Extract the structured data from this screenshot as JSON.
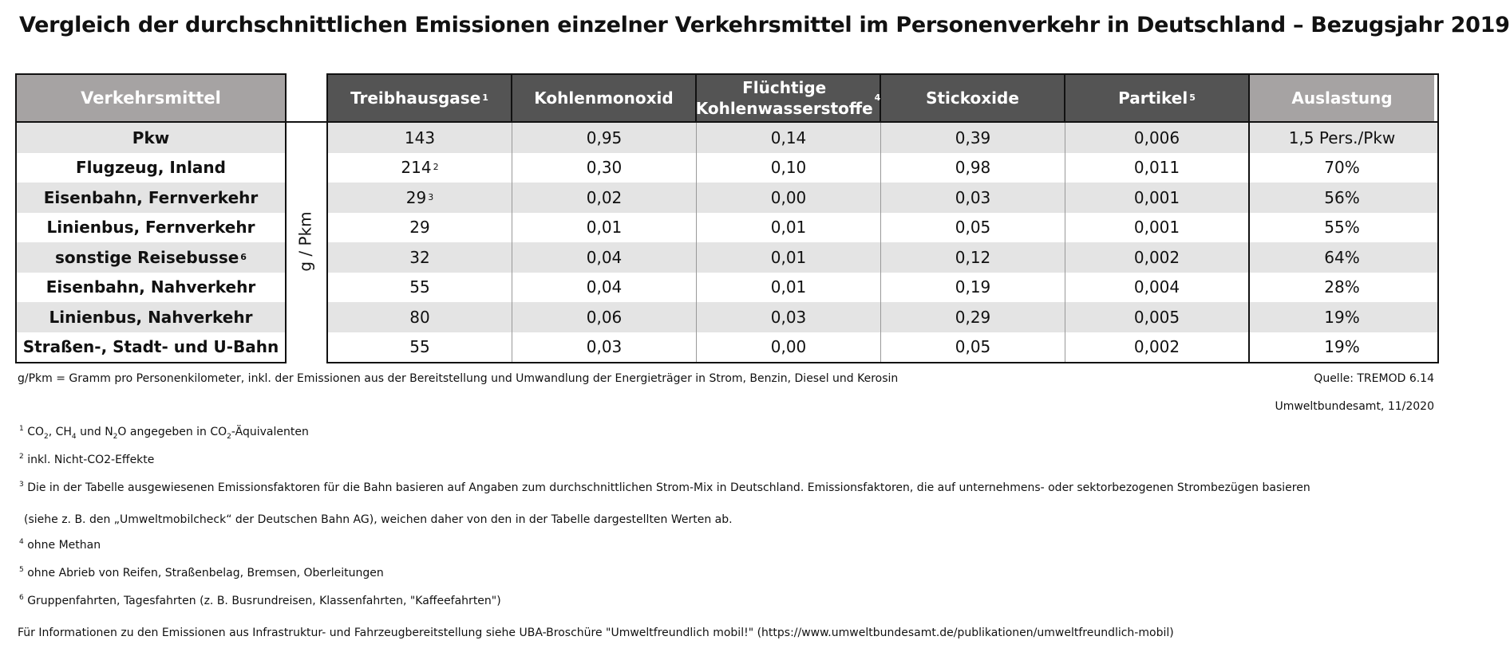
{
  "title": "Vergleich der durchschnittlichen Emissionen einzelner Verkehrsmittel im Personenverkehr in Deutschland – Bezugsjahr 2019",
  "chart_data": {
    "type": "table",
    "unit_label": "g / Pkm",
    "header_first": "Verkehrsmittel",
    "columns": [
      {
        "label": "Treibhausgase",
        "sup": "1"
      },
      {
        "label": "Kohlenmonoxid",
        "sup": ""
      },
      {
        "label": "Flüchtige Kohlenwasserstoffe",
        "sup": "4"
      },
      {
        "label": "Stickoxide",
        "sup": ""
      },
      {
        "label": "Partikel",
        "sup": "5"
      },
      {
        "label": "Auslastung",
        "sup": ""
      }
    ],
    "rows": [
      {
        "name": "Pkw",
        "sup": "",
        "values": [
          "143",
          "0,95",
          "0,14",
          "0,39",
          "0,006",
          "1,5 Pers./Pkw"
        ],
        "first_sup": ""
      },
      {
        "name": "Flugzeug, Inland",
        "sup": "",
        "values": [
          "214",
          "0,30",
          "0,10",
          "0,98",
          "0,011",
          "70%"
        ],
        "first_sup": "2"
      },
      {
        "name": "Eisenbahn, Fernverkehr",
        "sup": "",
        "values": [
          "29",
          "0,02",
          "0,00",
          "0,03",
          "0,001",
          "56%"
        ],
        "first_sup": "3"
      },
      {
        "name": "Linienbus, Fernverkehr",
        "sup": "",
        "values": [
          "29",
          "0,01",
          "0,01",
          "0,05",
          "0,001",
          "55%"
        ],
        "first_sup": ""
      },
      {
        "name": "sonstige Reisebusse",
        "sup": "6",
        "values": [
          "32",
          "0,04",
          "0,01",
          "0,12",
          "0,002",
          "64%"
        ],
        "first_sup": ""
      },
      {
        "name": "Eisenbahn, Nahverkehr",
        "sup": "",
        "values": [
          "55",
          "0,04",
          "0,01",
          "0,19",
          "0,004",
          "28%"
        ],
        "first_sup": ""
      },
      {
        "name": "Linienbus, Nahverkehr",
        "sup": "",
        "values": [
          "80",
          "0,06",
          "0,03",
          "0,29",
          "0,005",
          "19%"
        ],
        "first_sup": ""
      },
      {
        "name": "Straßen-, Stadt- und U-Bahn",
        "sup": "",
        "values": [
          "55",
          "0,03",
          "0,00",
          "0,05",
          "0,002",
          "19%"
        ],
        "first_sup": ""
      }
    ]
  },
  "notes": {
    "unit_note": "g/Pkm = Gramm pro Personenkilometer, inkl. der Emissionen aus der Bereitstellung und Umwandlung der Energieträger in Strom, Benzin, Diesel und Kerosin",
    "source": "Quelle: TREMOD 6.14",
    "publisher": "Umweltbundesamt, 11/2020",
    "fn1": "CO2, CH4 und N2O angegeben in CO2-Äquivalenten",
    "fn2": "inkl. Nicht-CO2-Effekte",
    "fn3a": "Die in der Tabelle ausgewiesenen Emissionsfaktoren für die Bahn basieren auf Angaben zum durchschnittlichen Strom-Mix in Deutschland. Emissionsfaktoren, die auf unternehmens- oder sektorbezogenen Strombezügen basieren",
    "fn3b": "(siehe z. B. den „Umweltmobilcheck“ der Deutschen Bahn AG), weichen daher von den in der Tabelle dargestellten Werten ab.",
    "fn4": "ohne Methan",
    "fn5": "ohne Abrieb von Reifen, Straßenbelag, Bremsen, Oberleitungen",
    "fn6": "Gruppenfahrten, Tagesfahrten (z. B. Busrundreisen, Klassenfahrten, \"Kaffeefahrten\")",
    "info": "Für Informationen zu den Emissionen aus Infrastruktur- und Fahrzeugbereitstellung siehe UBA-Broschüre \"Umweltfreundlich mobil!\" (https://www.umweltbundesamt.de/publikationen/umweltfreundlich-mobil)"
  }
}
